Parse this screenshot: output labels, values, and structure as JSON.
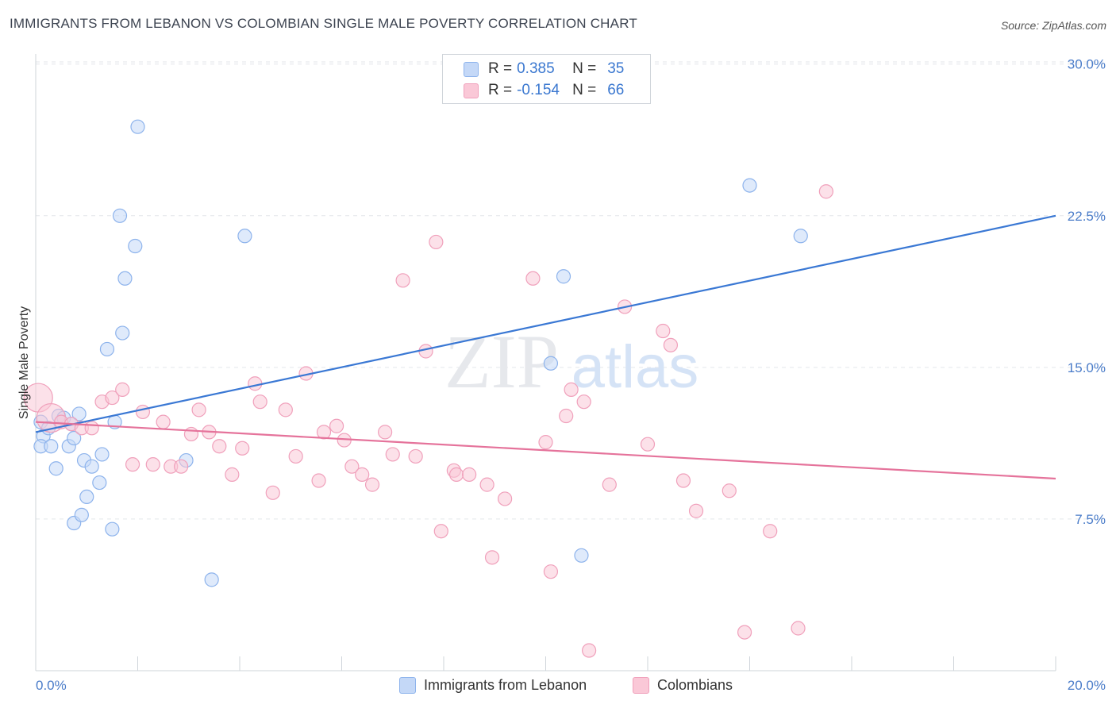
{
  "title": "IMMIGRANTS FROM LEBANON VS COLOMBIAN SINGLE MALE POVERTY CORRELATION CHART",
  "source": "Source: ZipAtlas.com",
  "watermark": {
    "zip": "ZIP",
    "atlas": "atlas"
  },
  "legend": {
    "r_label": "R =",
    "n_label": "N =",
    "rows": [
      {
        "r": "0.385",
        "n": "35",
        "color": "#8db3ec",
        "fill": "#c4d8f7"
      },
      {
        "r": "-0.154",
        "n": "66",
        "color": "#f0a0bb",
        "fill": "#fac8d7"
      }
    ]
  },
  "bottom_legend": [
    "Immigrants from Lebanon",
    "Colombians"
  ],
  "chart_data": {
    "type": "scatter",
    "title": "IMMIGRANTS FROM LEBANON VS COLOMBIAN SINGLE MALE POVERTY CORRELATION CHART",
    "xlabel": "",
    "ylabel": "Single Male Poverty",
    "xlim": [
      0,
      20
    ],
    "ylim": [
      0,
      30.5
    ],
    "x_tick_labels": [
      "0.0%",
      "20.0%"
    ],
    "y_ticks": [
      7.5,
      15.0,
      22.5,
      30.0
    ],
    "y_tick_labels": [
      "7.5%",
      "15.0%",
      "22.5%",
      "30.0%"
    ],
    "series": [
      {
        "name": "Immigrants from Lebanon",
        "color": "#3a78d4",
        "point_fill": "#c4d8f7",
        "point_stroke": "#8db3ec",
        "trend": {
          "x": [
            0,
            20
          ],
          "y": [
            11.8,
            22.5
          ]
        },
        "points": [
          {
            "x": 0.1,
            "y": 12.3
          },
          {
            "x": 0.15,
            "y": 11.6
          },
          {
            "x": 0.1,
            "y": 11.1
          },
          {
            "x": 0.25,
            "y": 12.0
          },
          {
            "x": 0.3,
            "y": 11.1
          },
          {
            "x": 0.45,
            "y": 12.6
          },
          {
            "x": 0.55,
            "y": 12.5
          },
          {
            "x": 0.4,
            "y": 10.0
          },
          {
            "x": 0.65,
            "y": 11.1
          },
          {
            "x": 0.7,
            "y": 12.2
          },
          {
            "x": 0.85,
            "y": 12.7
          },
          {
            "x": 0.75,
            "y": 11.5
          },
          {
            "x": 0.95,
            "y": 10.4
          },
          {
            "x": 1.1,
            "y": 10.1
          },
          {
            "x": 1.3,
            "y": 10.7
          },
          {
            "x": 1.25,
            "y": 9.3
          },
          {
            "x": 1.0,
            "y": 8.6
          },
          {
            "x": 0.75,
            "y": 7.3
          },
          {
            "x": 0.9,
            "y": 7.7
          },
          {
            "x": 1.5,
            "y": 7.0
          },
          {
            "x": 1.55,
            "y": 12.3
          },
          {
            "x": 1.4,
            "y": 15.9
          },
          {
            "x": 1.7,
            "y": 16.7
          },
          {
            "x": 1.75,
            "y": 19.4
          },
          {
            "x": 1.95,
            "y": 21.0
          },
          {
            "x": 1.65,
            "y": 22.5
          },
          {
            "x": 2.0,
            "y": 26.9
          },
          {
            "x": 2.95,
            "y": 10.4
          },
          {
            "x": 3.45,
            "y": 4.5
          },
          {
            "x": 4.1,
            "y": 21.5
          },
          {
            "x": 10.1,
            "y": 15.2
          },
          {
            "x": 10.35,
            "y": 19.5
          },
          {
            "x": 10.7,
            "y": 5.7
          },
          {
            "x": 14.0,
            "y": 24.0
          },
          {
            "x": 15.0,
            "y": 21.5
          }
        ]
      },
      {
        "name": "Colombians",
        "color": "#e5739b",
        "point_fill": "#fac8d7",
        "point_stroke": "#f0a0bb",
        "trend": {
          "x": [
            0,
            20
          ],
          "y": [
            12.3,
            9.5
          ]
        },
        "points": [
          {
            "x": 0.05,
            "y": 13.5,
            "big": true
          },
          {
            "x": 0.3,
            "y": 12.5,
            "big": true
          },
          {
            "x": 0.5,
            "y": 12.3
          },
          {
            "x": 0.7,
            "y": 12.2
          },
          {
            "x": 0.9,
            "y": 12.0
          },
          {
            "x": 1.1,
            "y": 12.0
          },
          {
            "x": 1.3,
            "y": 13.3
          },
          {
            "x": 1.5,
            "y": 13.5
          },
          {
            "x": 1.7,
            "y": 13.9
          },
          {
            "x": 1.9,
            "y": 10.2
          },
          {
            "x": 2.1,
            "y": 12.8
          },
          {
            "x": 2.3,
            "y": 10.2
          },
          {
            "x": 2.5,
            "y": 12.3
          },
          {
            "x": 2.65,
            "y": 10.1
          },
          {
            "x": 2.85,
            "y": 10.1
          },
          {
            "x": 3.05,
            "y": 11.7
          },
          {
            "x": 3.2,
            "y": 12.9
          },
          {
            "x": 3.4,
            "y": 11.8
          },
          {
            "x": 3.6,
            "y": 11.1
          },
          {
            "x": 3.85,
            "y": 9.7
          },
          {
            "x": 4.05,
            "y": 11.0
          },
          {
            "x": 4.3,
            "y": 14.2
          },
          {
            "x": 4.4,
            "y": 13.3
          },
          {
            "x": 4.65,
            "y": 8.8
          },
          {
            "x": 4.9,
            "y": 12.9
          },
          {
            "x": 5.1,
            "y": 10.6
          },
          {
            "x": 5.3,
            "y": 14.7
          },
          {
            "x": 5.55,
            "y": 9.4
          },
          {
            "x": 5.65,
            "y": 11.8
          },
          {
            "x": 5.9,
            "y": 12.1
          },
          {
            "x": 6.05,
            "y": 11.4
          },
          {
            "x": 6.2,
            "y": 10.1
          },
          {
            "x": 6.4,
            "y": 9.7
          },
          {
            "x": 6.6,
            "y": 9.2
          },
          {
            "x": 6.85,
            "y": 11.8
          },
          {
            "x": 7.0,
            "y": 10.7
          },
          {
            "x": 7.2,
            "y": 19.3
          },
          {
            "x": 7.45,
            "y": 10.6
          },
          {
            "x": 7.65,
            "y": 15.8
          },
          {
            "x": 7.85,
            "y": 21.2
          },
          {
            "x": 7.95,
            "y": 6.9
          },
          {
            "x": 8.2,
            "y": 9.9
          },
          {
            "x": 8.25,
            "y": 9.7
          },
          {
            "x": 8.5,
            "y": 9.7
          },
          {
            "x": 8.85,
            "y": 9.2
          },
          {
            "x": 8.95,
            "y": 5.6
          },
          {
            "x": 9.2,
            "y": 8.5
          },
          {
            "x": 9.75,
            "y": 19.4
          },
          {
            "x": 10.0,
            "y": 11.3
          },
          {
            "x": 10.1,
            "y": 4.9
          },
          {
            "x": 10.4,
            "y": 12.6
          },
          {
            "x": 10.5,
            "y": 13.9
          },
          {
            "x": 10.75,
            "y": 13.3
          },
          {
            "x": 10.85,
            "y": 1.0
          },
          {
            "x": 11.25,
            "y": 9.2
          },
          {
            "x": 11.55,
            "y": 18.0
          },
          {
            "x": 12.0,
            "y": 11.2
          },
          {
            "x": 12.3,
            "y": 16.8
          },
          {
            "x": 12.45,
            "y": 16.1
          },
          {
            "x": 12.7,
            "y": 9.4
          },
          {
            "x": 12.95,
            "y": 7.9
          },
          {
            "x": 13.6,
            "y": 8.9
          },
          {
            "x": 13.9,
            "y": 1.9
          },
          {
            "x": 14.4,
            "y": 6.9
          },
          {
            "x": 14.95,
            "y": 2.1
          },
          {
            "x": 15.5,
            "y": 23.7
          }
        ]
      }
    ]
  }
}
